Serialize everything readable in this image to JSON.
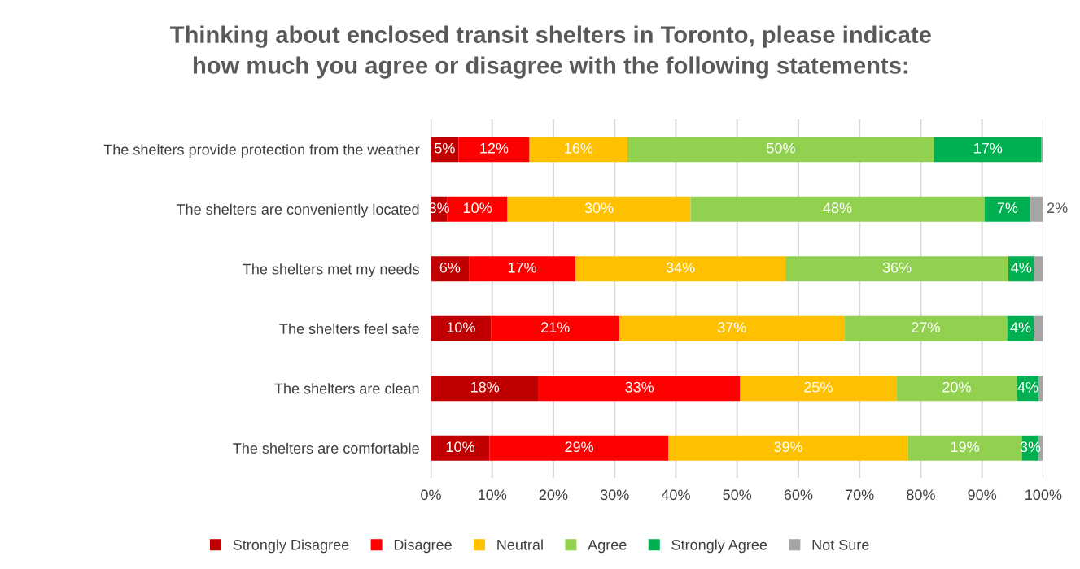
{
  "chart_data": {
    "type": "bar",
    "orientation": "horizontal",
    "stacked": true,
    "title": "Thinking about enclosed transit shelters in Toronto, please indicate\nhow much you agree or disagree with the following statements:",
    "categories": [
      "The shelters provide protection from the weather",
      "The shelters are conveniently located",
      "The shelters met my needs",
      "The shelters feel safe",
      "The shelters are clean",
      "The shelters are comfortable"
    ],
    "series": [
      {
        "name": "Strongly Disagree",
        "color": "#c00000",
        "values": [
          4.5,
          2.7,
          6.2,
          9.8,
          17.6,
          9.6
        ],
        "value_labels": [
          "5%",
          "3%",
          "6%",
          "10%",
          "18%",
          "10%"
        ]
      },
      {
        "name": "Disagree",
        "color": "#ff0000",
        "values": [
          11.6,
          9.8,
          17.4,
          21.0,
          32.9,
          29.2
        ],
        "value_labels": [
          "12%",
          "10%",
          "17%",
          "21%",
          "33%",
          "29%"
        ]
      },
      {
        "name": "Neutral",
        "color": "#ffc000",
        "values": [
          16.0,
          29.9,
          34.3,
          36.7,
          25.5,
          39.1
        ],
        "value_labels": [
          "16%",
          "30%",
          "34%",
          "37%",
          "25%",
          "39%"
        ]
      },
      {
        "name": "Agree",
        "color": "#92d050",
        "values": [
          50.1,
          48.0,
          36.4,
          26.6,
          19.7,
          18.6
        ],
        "value_labels": [
          "50%",
          "48%",
          "36%",
          "27%",
          "20%",
          "19%"
        ]
      },
      {
        "name": "Strongly Agree",
        "color": "#00b050",
        "values": [
          17.5,
          7.5,
          4.2,
          4.4,
          3.6,
          2.8
        ],
        "value_labels": [
          "17%",
          "7%",
          "4%",
          "4%",
          "4%",
          "3%"
        ]
      },
      {
        "name": "Not Sure",
        "color": "#a5a5a5",
        "values": [
          0.3,
          2.1,
          1.5,
          1.5,
          0.7,
          0.7
        ],
        "value_labels": [
          null,
          "2%",
          null,
          null,
          null,
          null
        ]
      }
    ],
    "xlim": [
      0,
      100
    ],
    "xticks": [
      {
        "value": 0,
        "label": "0%"
      },
      {
        "value": 10,
        "label": "10%"
      },
      {
        "value": 20,
        "label": "20%"
      },
      {
        "value": 30,
        "label": "30%"
      },
      {
        "value": 40,
        "label": "40%"
      },
      {
        "value": 50,
        "label": "50%"
      },
      {
        "value": 60,
        "label": "60%"
      },
      {
        "value": 70,
        "label": "70%"
      },
      {
        "value": 80,
        "label": "80%"
      },
      {
        "value": 90,
        "label": "90%"
      },
      {
        "value": 100,
        "label": "100%"
      }
    ],
    "grid": "x",
    "legend": "bottom"
  }
}
